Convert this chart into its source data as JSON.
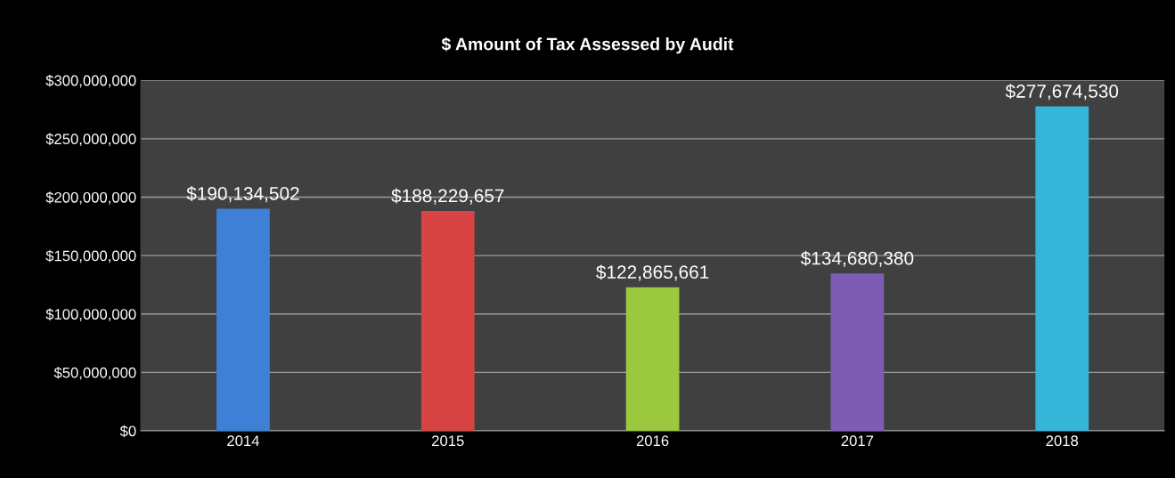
{
  "chart_data": {
    "type": "bar",
    "title": "$ Amount of Tax Assessed by Audit",
    "categories": [
      "2014",
      "2015",
      "2016",
      "2017",
      "2018"
    ],
    "values": [
      190134502,
      188229657,
      122865661,
      134680380,
      277674530
    ],
    "colors": [
      "#3e80d6",
      "#d84343",
      "#9cc83f",
      "#7f5cb3",
      "#34b6d9"
    ],
    "value_labels": [
      "$190,134,502",
      "$188,229,657",
      "$122,865,661",
      "$134,680,380",
      "$277,674,530"
    ],
    "ylim": [
      0,
      300000000
    ],
    "yticks": [
      {
        "value": 0,
        "label": "$0"
      },
      {
        "value": 50000000,
        "label": "$50,000,000"
      },
      {
        "value": 100000000,
        "label": "$100,000,000"
      },
      {
        "value": 150000000,
        "label": "$150,000,000"
      },
      {
        "value": 200000000,
        "label": "$200,000,000"
      },
      {
        "value": 250000000,
        "label": "$250,000,000"
      },
      {
        "value": 300000000,
        "label": "$300,000,000"
      }
    ],
    "grid": "y",
    "legend": false
  }
}
